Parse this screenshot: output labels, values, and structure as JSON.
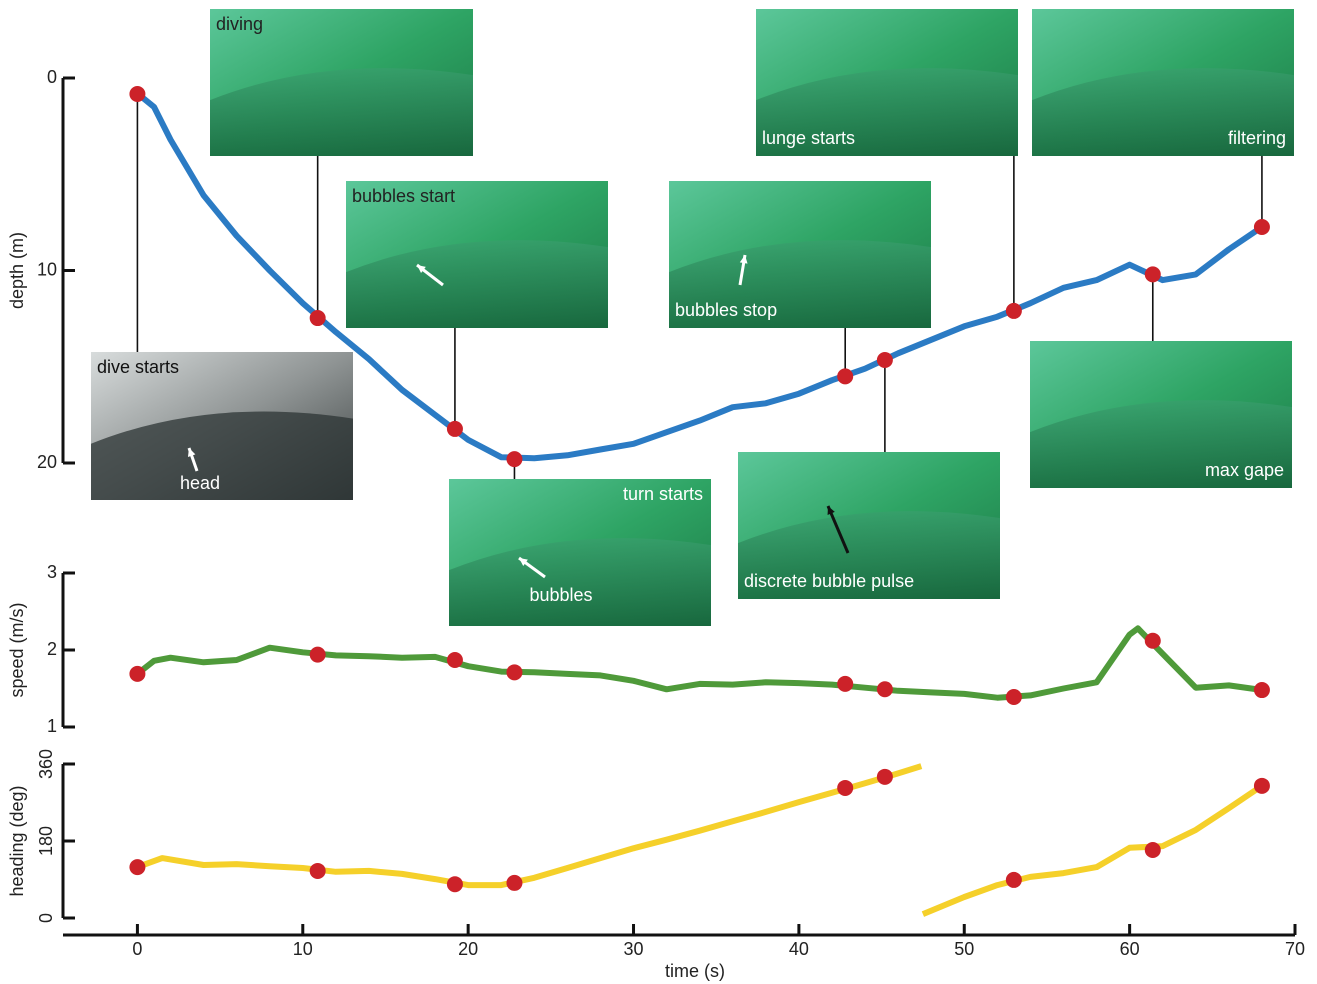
{
  "chart_data": [
    {
      "type": "line",
      "ylabel": "depth (m)",
      "ylim": [
        0,
        20
      ],
      "invert_y": true,
      "yticks": [
        0,
        10,
        20
      ],
      "xlim": [
        -4.5,
        70
      ],
      "x": [
        0,
        1,
        2,
        4,
        6,
        8,
        10,
        12,
        14,
        16,
        18,
        20,
        22,
        24,
        26,
        28,
        30,
        32,
        34,
        36,
        38,
        40,
        42,
        44,
        46,
        48,
        50,
        52,
        54,
        56,
        58,
        60,
        62,
        64,
        66,
        68
      ],
      "series": [
        {
          "color": "#2b7bc4",
          "values": [
            0.8,
            1.5,
            3.2,
            6.1,
            8.2,
            10,
            11.7,
            13.2,
            14.6,
            16.2,
            17.5,
            18.8,
            19.7,
            19.75,
            19.6,
            19.3,
            19.0,
            18.4,
            17.8,
            17.1,
            16.9,
            16.4,
            15.7,
            15.1,
            14.3,
            13.6,
            12.9,
            12.4,
            11.7,
            10.9,
            10.5,
            9.7,
            10.5,
            10.2,
            8.9,
            7.74
          ]
        }
      ],
      "markers": {
        "color": "#cc2229",
        "x": [
          0,
          10.9,
          19.2,
          22.8,
          42.8,
          45.2,
          53.0,
          61.4,
          68.0
        ],
        "values": [
          0.83,
          12.47,
          18.23,
          19.8,
          15.5,
          14.65,
          12.1,
          10.2,
          7.74
        ]
      },
      "annotations": [
        {
          "text": "dive starts",
          "pointer": "head"
        },
        {
          "text": "diving"
        },
        {
          "text": "bubbles start"
        },
        {
          "text": "turn starts",
          "pointer": "bubbles"
        },
        {
          "text": "bubbles stop"
        },
        {
          "text": "discrete bubble pulse"
        },
        {
          "text": "lunge starts"
        },
        {
          "text": "max gape"
        },
        {
          "text": "filtering"
        }
      ]
    },
    {
      "type": "line",
      "ylabel": "speed (m/s)",
      "ylim": [
        1,
        3
      ],
      "yticks": [
        1,
        2,
        3
      ],
      "xlim": [
        -4.5,
        70
      ],
      "x": [
        0,
        1,
        2,
        4,
        6,
        8,
        10,
        12,
        14,
        16,
        18,
        20,
        22,
        24,
        26,
        28,
        30,
        32,
        34,
        36,
        38,
        40,
        42,
        44,
        46,
        48,
        50,
        52,
        54,
        56,
        58,
        60,
        60.5,
        62,
        64,
        66,
        68
      ],
      "series": [
        {
          "color": "#4f9a3a",
          "values": [
            1.69,
            1.86,
            1.9,
            1.84,
            1.87,
            2.03,
            1.97,
            1.93,
            1.92,
            1.9,
            1.91,
            1.79,
            1.72,
            1.71,
            1.69,
            1.67,
            1.6,
            1.49,
            1.56,
            1.55,
            1.58,
            1.57,
            1.55,
            1.51,
            1.47,
            1.45,
            1.43,
            1.38,
            1.41,
            1.5,
            1.58,
            2.2,
            2.28,
            1.95,
            1.51,
            1.54,
            1.48
          ]
        }
      ],
      "markers": {
        "color": "#cc2229",
        "x": [
          0,
          10.9,
          19.2,
          22.8,
          42.8,
          45.2,
          53.0,
          61.4,
          68.0
        ],
        "values": [
          1.69,
          1.94,
          1.87,
          1.71,
          1.56,
          1.49,
          1.39,
          2.12,
          1.48
        ]
      }
    },
    {
      "type": "line",
      "ylabel": "heading (deg)",
      "ylim": [
        0,
        360
      ],
      "yticks": [
        0,
        180,
        360
      ],
      "xlim": [
        -4.5,
        70
      ],
      "xticks": [
        0,
        10,
        20,
        30,
        40,
        50,
        60,
        70
      ],
      "xlabel": "time (s)",
      "x": [
        0,
        1.5,
        4,
        6,
        8,
        10,
        12,
        14,
        16,
        18,
        20,
        22,
        24,
        26,
        28,
        30,
        32,
        34,
        36,
        38,
        40,
        42,
        44,
        46,
        47.4,
        47.45,
        47.5,
        50,
        52,
        54,
        56,
        58,
        60,
        62,
        64,
        66,
        68
      ],
      "series": [
        {
          "color": "#f5d02a",
          "values": [
            119,
            140,
            124,
            126,
            121,
            117,
            108,
            110,
            103,
            91,
            77,
            77,
            94,
            117,
            140,
            163,
            183,
            204,
            226,
            248,
            271,
            293,
            315,
            338,
            355,
            null,
            9,
            49,
            77,
            96,
            105,
            119,
            164,
            168,
            206,
            257,
            309
          ]
        }
      ],
      "markers": {
        "color": "#cc2229",
        "x": [
          0,
          10.9,
          19.2,
          22.8,
          42.8,
          45.2,
          53.0,
          61.4,
          68.0
        ],
        "values": [
          119,
          110,
          79,
          82,
          304,
          330,
          89,
          159,
          309
        ]
      }
    }
  ]
}
